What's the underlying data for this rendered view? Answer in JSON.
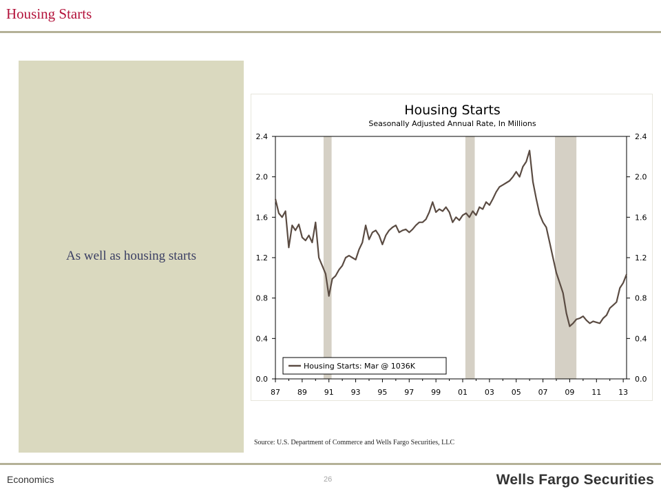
{
  "slide": {
    "title": "Housing Starts",
    "panel_text": "As well as housing starts",
    "source": "Source: U.S. Department of Commerce and Wells Fargo Securities, LLC",
    "footer_left": "Economics",
    "page_number": "26",
    "brand": "Wells Fargo Securities"
  },
  "colors": {
    "accent": "#b3123a",
    "panel": "#dad9bf",
    "line": "#5a4b42",
    "recession": "#d5d0c5"
  },
  "chart_data": {
    "type": "line",
    "title": "Housing Starts",
    "subtitle": "Seasonally Adjusted Annual Rate, In Millions",
    "xlabel": "",
    "ylabel": "",
    "x_tick_labels": [
      "87",
      "89",
      "91",
      "93",
      "95",
      "97",
      "99",
      "01",
      "03",
      "05",
      "07",
      "09",
      "11",
      "13"
    ],
    "y_ticks": [
      0.0,
      0.4,
      0.8,
      1.2,
      1.6,
      2.0,
      2.4
    ],
    "y_tick_labels": [
      "0.0",
      "0.4",
      "0.8",
      "1.2",
      "1.6",
      "2.0",
      "2.4"
    ],
    "ylim": [
      0,
      2.4
    ],
    "xlim": [
      1987.0,
      2013.25
    ],
    "grid": false,
    "legend": "bottom-left",
    "recessions": [
      [
        1990.6,
        1991.2
      ],
      [
        2001.2,
        2001.9
      ],
      [
        2007.9,
        2009.5
      ]
    ],
    "series": [
      {
        "name": "Housing Starts: Mar @ 1036K",
        "x": [
          1987.0,
          1987.25,
          1987.5,
          1987.75,
          1988.0,
          1988.25,
          1988.5,
          1988.75,
          1989.0,
          1989.25,
          1989.5,
          1989.75,
          1990.0,
          1990.25,
          1990.5,
          1990.75,
          1991.0,
          1991.25,
          1991.5,
          1991.75,
          1992.0,
          1992.25,
          1992.5,
          1992.75,
          1993.0,
          1993.25,
          1993.5,
          1993.75,
          1994.0,
          1994.25,
          1994.5,
          1994.75,
          1995.0,
          1995.25,
          1995.5,
          1995.75,
          1996.0,
          1996.25,
          1996.5,
          1996.75,
          1997.0,
          1997.25,
          1997.5,
          1997.75,
          1998.0,
          1998.25,
          1998.5,
          1998.75,
          1999.0,
          1999.25,
          1999.5,
          1999.75,
          2000.0,
          2000.25,
          2000.5,
          2000.75,
          2001.0,
          2001.25,
          2001.5,
          2001.75,
          2002.0,
          2002.25,
          2002.5,
          2002.75,
          2003.0,
          2003.25,
          2003.5,
          2003.75,
          2004.0,
          2004.25,
          2004.5,
          2004.75,
          2005.0,
          2005.25,
          2005.5,
          2005.75,
          2006.0,
          2006.25,
          2006.5,
          2006.75,
          2007.0,
          2007.25,
          2007.5,
          2007.75,
          2008.0,
          2008.25,
          2008.5,
          2008.75,
          2009.0,
          2009.25,
          2009.5,
          2009.75,
          2010.0,
          2010.25,
          2010.5,
          2010.75,
          2011.0,
          2011.25,
          2011.5,
          2011.75,
          2012.0,
          2012.25,
          2012.5,
          2012.75,
          2013.0,
          2013.25
        ],
        "values": [
          1.78,
          1.64,
          1.6,
          1.66,
          1.3,
          1.52,
          1.47,
          1.53,
          1.4,
          1.37,
          1.42,
          1.35,
          1.55,
          1.2,
          1.12,
          1.04,
          0.82,
          0.99,
          1.02,
          1.08,
          1.12,
          1.2,
          1.22,
          1.2,
          1.18,
          1.28,
          1.35,
          1.52,
          1.38,
          1.45,
          1.47,
          1.42,
          1.33,
          1.42,
          1.47,
          1.5,
          1.52,
          1.45,
          1.47,
          1.48,
          1.45,
          1.48,
          1.52,
          1.55,
          1.55,
          1.58,
          1.65,
          1.75,
          1.65,
          1.68,
          1.66,
          1.7,
          1.65,
          1.55,
          1.6,
          1.57,
          1.62,
          1.64,
          1.6,
          1.66,
          1.62,
          1.7,
          1.68,
          1.75,
          1.72,
          1.78,
          1.85,
          1.9,
          1.92,
          1.94,
          1.96,
          2.0,
          2.05,
          2.0,
          2.1,
          2.15,
          2.26,
          1.95,
          1.78,
          1.63,
          1.55,
          1.5,
          1.35,
          1.2,
          1.05,
          0.95,
          0.85,
          0.65,
          0.52,
          0.55,
          0.59,
          0.6,
          0.62,
          0.58,
          0.55,
          0.57,
          0.56,
          0.55,
          0.6,
          0.63,
          0.7,
          0.73,
          0.76,
          0.9,
          0.95,
          1.036
        ]
      }
    ]
  }
}
